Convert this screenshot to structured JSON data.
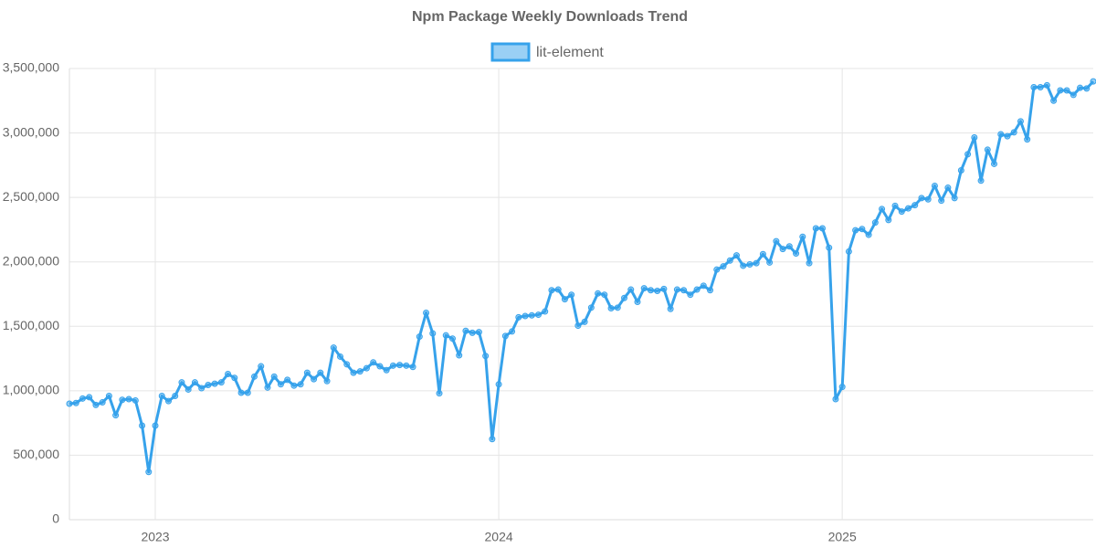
{
  "chart_data": {
    "type": "line",
    "title": "Npm Package Weekly Downloads Trend",
    "categories": [
      null,
      null,
      null,
      null,
      null,
      null,
      null,
      null,
      null,
      null,
      null,
      null,
      null,
      "2023",
      null,
      null,
      null,
      null,
      null,
      null,
      null,
      null,
      null,
      null,
      null,
      null,
      null,
      null,
      null,
      null,
      null,
      null,
      null,
      null,
      null,
      null,
      null,
      null,
      null,
      null,
      null,
      null,
      null,
      null,
      null,
      null,
      null,
      null,
      null,
      null,
      null,
      null,
      null,
      null,
      null,
      null,
      null,
      null,
      null,
      null,
      null,
      null,
      null,
      null,
      null,
      "2024",
      null,
      null,
      null,
      null,
      null,
      null,
      null,
      null,
      null,
      null,
      null,
      null,
      null,
      null,
      null,
      null,
      null,
      null,
      null,
      null,
      null,
      null,
      null,
      null,
      null,
      null,
      null,
      null,
      null,
      null,
      null,
      null,
      null,
      null,
      null,
      null,
      null,
      null,
      null,
      null,
      null,
      null,
      null,
      null,
      null,
      null,
      null,
      null,
      null,
      null,
      null,
      "2025",
      null,
      null,
      null,
      null,
      null,
      null,
      null,
      null,
      null,
      null,
      null,
      null,
      null,
      null,
      null,
      null,
      null,
      null,
      null,
      null,
      null,
      null,
      null,
      null,
      null,
      null,
      null,
      null,
      null,
      null,
      null,
      null,
      null,
      null,
      null,
      null,
      null,
      null
    ],
    "series": [
      {
        "name": "lit-element",
        "color": "#36a2eb",
        "values": [
          900000,
          905000,
          940000,
          950000,
          890000,
          910000,
          960000,
          810000,
          930000,
          935000,
          925000,
          730000,
          370000,
          730000,
          960000,
          920000,
          960000,
          1065000,
          1010000,
          1065000,
          1020000,
          1045000,
          1055000,
          1065000,
          1130000,
          1100000,
          985000,
          985000,
          1110000,
          1190000,
          1025000,
          1110000,
          1050000,
          1085000,
          1040000,
          1050000,
          1140000,
          1090000,
          1140000,
          1075000,
          1335000,
          1265000,
          1205000,
          1140000,
          1150000,
          1175000,
          1220000,
          1190000,
          1160000,
          1195000,
          1200000,
          1195000,
          1185000,
          1420000,
          1605000,
          1445000,
          980000,
          1430000,
          1405000,
          1275000,
          1465000,
          1450000,
          1455000,
          1270000,
          625000,
          1050000,
          1425000,
          1460000,
          1570000,
          1580000,
          1585000,
          1590000,
          1615000,
          1780000,
          1785000,
          1710000,
          1745000,
          1505000,
          1535000,
          1645000,
          1755000,
          1745000,
          1640000,
          1645000,
          1720000,
          1785000,
          1690000,
          1795000,
          1780000,
          1775000,
          1790000,
          1635000,
          1785000,
          1780000,
          1745000,
          1785000,
          1815000,
          1780000,
          1940000,
          1965000,
          2010000,
          2050000,
          1970000,
          1980000,
          1990000,
          2060000,
          1995000,
          2160000,
          2100000,
          2120000,
          2065000,
          2195000,
          1990000,
          2260000,
          2260000,
          2110000,
          935000,
          1030000,
          2080000,
          2245000,
          2255000,
          2210000,
          2305000,
          2410000,
          2325000,
          2435000,
          2390000,
          2415000,
          2440000,
          2495000,
          2485000,
          2590000,
          2475000,
          2575000,
          2495000,
          2710000,
          2835000,
          2965000,
          2630000,
          2870000,
          2760000,
          2990000,
          2975000,
          3005000,
          3090000,
          2950000,
          3355000,
          3355000,
          3370000,
          3250000,
          3330000,
          3330000,
          3295000,
          3350000,
          3345000,
          3400000
        ]
      }
    ],
    "ylim": [
      0,
      3500000
    ],
    "yticks": [
      0,
      {
        "value": 500000,
        "label": "500,000"
      },
      {
        "value": 1000000,
        "label": "1,000,000"
      },
      {
        "value": 1500000,
        "label": "1,500,000"
      },
      {
        "value": 2000000,
        "label": "2,000,000"
      },
      {
        "value": 2500000,
        "label": "2,500,000"
      },
      {
        "value": 3000000,
        "label": "3,000,000"
      },
      {
        "value": 3500000,
        "label": "3,500,000"
      }
    ],
    "grid": true,
    "legend": "top"
  }
}
